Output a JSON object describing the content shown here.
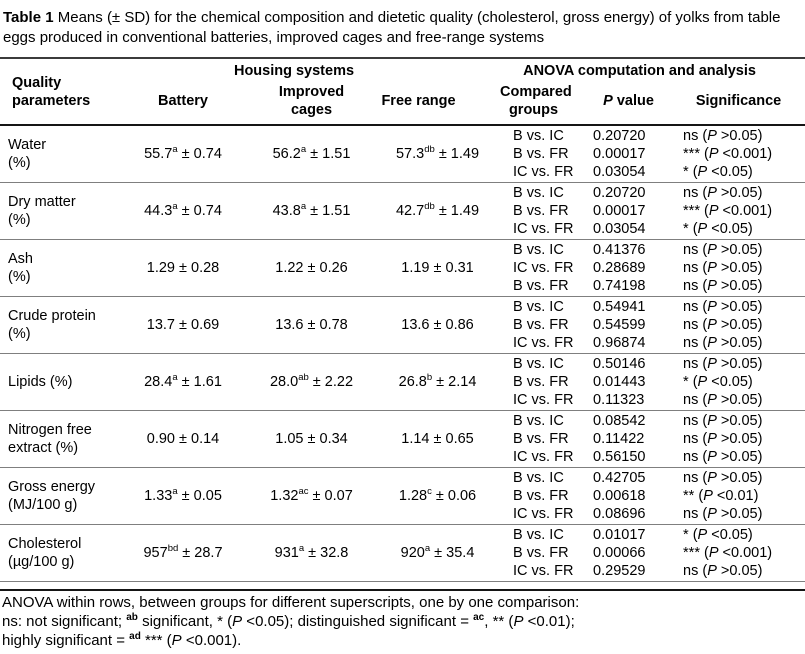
{
  "caption": {
    "label": "Table 1",
    "text": "Means (± SD) for the chemical composition and dietetic quality (cholesterol, gross energy) of yolks from table eggs produced in conventional batteries, improved cages and free-range systems"
  },
  "colors": {
    "text": "#000000",
    "rule_dark": "#2b2b2b",
    "rule_gray": "#7f7f7f",
    "background": "#ffffff"
  },
  "table": {
    "header": {
      "quality_parameters": "Quality\nparameters",
      "housing_systems": "Housing systems",
      "anova": "ANOVA computation and analysis",
      "battery": "Battery",
      "improved_cages": "Improved\ncages",
      "free_range": "Free range",
      "compared_groups": "Compared\ngroups",
      "p_italic": "P",
      "p_rest": " value",
      "significance": "Significance"
    },
    "rows": [
      {
        "param": "Water\n(%)",
        "values": [
          {
            "mean": "55.7",
            "sup": "a",
            "sd": "0.74"
          },
          {
            "mean": "56.2",
            "sup": "a",
            "sd": "1.51"
          },
          {
            "mean": "57.3",
            "sup": "db",
            "sd": "1.49"
          }
        ],
        "anova": [
          {
            "group": "B vs. IC",
            "p": "0.20720",
            "mark": "ns",
            "threshold": ">0.05"
          },
          {
            "group": "B vs. FR",
            "p": "0.00017",
            "mark": "***",
            "threshold": "<0.001"
          },
          {
            "group": "IC vs. FR",
            "p": "0.03054",
            "mark": "*",
            "threshold": "<0.05"
          }
        ]
      },
      {
        "param": "Dry matter\n(%)",
        "values": [
          {
            "mean": "44.3",
            "sup": "a",
            "sd": "0.74"
          },
          {
            "mean": "43.8",
            "sup": "a",
            "sd": "1.51"
          },
          {
            "mean": "42.7",
            "sup": "db",
            "sd": "1.49"
          }
        ],
        "anova": [
          {
            "group": "B vs. IC",
            "p": "0.20720",
            "mark": "ns",
            "threshold": ">0.05"
          },
          {
            "group": "B vs. FR",
            "p": "0.00017",
            "mark": "***",
            "threshold": "<0.001"
          },
          {
            "group": "IC vs. FR",
            "p": "0.03054",
            "mark": "*",
            "threshold": "<0.05"
          }
        ]
      },
      {
        "param": "Ash\n(%)",
        "values": [
          {
            "mean": "1.29",
            "sup": "",
            "sd": "0.28"
          },
          {
            "mean": "1.22",
            "sup": "",
            "sd": "0.26"
          },
          {
            "mean": "1.19",
            "sup": "",
            "sd": "0.31"
          }
        ],
        "anova": [
          {
            "group": "B vs. IC",
            "p": "0.41376",
            "mark": "ns",
            "threshold": ">0.05"
          },
          {
            "group": "IC vs. FR",
            "p": "0.28689",
            "mark": "ns",
            "threshold": ">0.05"
          },
          {
            "group": "B vs. FR",
            "p": "0.74198",
            "mark": "ns",
            "threshold": ">0.05"
          }
        ]
      },
      {
        "param": "Crude protein\n(%)",
        "values": [
          {
            "mean": "13.7",
            "sup": "",
            "sd": "0.69"
          },
          {
            "mean": "13.6",
            "sup": "",
            "sd": "0.78"
          },
          {
            "mean": "13.6",
            "sup": "",
            "sd": "0.86"
          }
        ],
        "anova": [
          {
            "group": "B vs. IC",
            "p": "0.54941",
            "mark": "ns",
            "threshold": ">0.05"
          },
          {
            "group": "B vs. FR",
            "p": "0.54599",
            "mark": "ns",
            "threshold": ">0.05"
          },
          {
            "group": "IC vs. FR",
            "p": "0.96874",
            "mark": "ns",
            "threshold": ">0.05"
          }
        ]
      },
      {
        "param": "Lipids (%)",
        "values": [
          {
            "mean": "28.4",
            "sup": "a",
            "sd": "1.61"
          },
          {
            "mean": "28.0",
            "sup": "ab",
            "sd": "2.22"
          },
          {
            "mean": "26.8",
            "sup": "b",
            "sd": "2.14"
          }
        ],
        "anova": [
          {
            "group": "B vs. IC",
            "p": "0.50146",
            "mark": "ns",
            "threshold": ">0.05"
          },
          {
            "group": "B vs. FR",
            "p": "0.01443",
            "mark": "*",
            "threshold": "<0.05"
          },
          {
            "group": "IC vs. FR",
            "p": "0.11323",
            "mark": "ns",
            "threshold": ">0.05"
          }
        ]
      },
      {
        "param": "Nitrogen free\nextract (%)",
        "values": [
          {
            "mean": "0.90",
            "sup": "",
            "sd": "0.14"
          },
          {
            "mean": "1.05",
            "sup": "",
            "sd": "0.34"
          },
          {
            "mean": "1.14",
            "sup": "",
            "sd": "0.65"
          }
        ],
        "anova": [
          {
            "group": "B vs. IC",
            "p": "0.08542",
            "mark": "ns",
            "threshold": ">0.05"
          },
          {
            "group": "B vs. FR",
            "p": "0.11422",
            "mark": "ns",
            "threshold": ">0.05"
          },
          {
            "group": "IC vs. FR",
            "p": "0.56150",
            "mark": "ns",
            "threshold": ">0.05"
          }
        ]
      },
      {
        "param": "Gross energy\n(MJ/100 g)",
        "values": [
          {
            "mean": "1.33",
            "sup": "a",
            "sd": "0.05"
          },
          {
            "mean": "1.32",
            "sup": "ac",
            "sd": "0.07"
          },
          {
            "mean": "1.28",
            "sup": "c",
            "sd": "0.06"
          }
        ],
        "anova": [
          {
            "group": "B vs. IC",
            "p": "0.42705",
            "mark": "ns",
            "threshold": ">0.05"
          },
          {
            "group": "B vs. FR",
            "p": "0.00618",
            "mark": "**",
            "threshold": "<0.01"
          },
          {
            "group": "IC vs. FR",
            "p": "0.08696",
            "mark": "ns",
            "threshold": ">0.05"
          }
        ]
      },
      {
        "param": "Cholesterol\n(µg/100 g)",
        "values": [
          {
            "mean": "957",
            "sup": "bd",
            "sd": "28.7"
          },
          {
            "mean": "931",
            "sup": "a",
            "sd": "32.8"
          },
          {
            "mean": "920",
            "sup": "a",
            "sd": "35.4"
          }
        ],
        "anova": [
          {
            "group": "B vs. IC",
            "p": "0.01017",
            "mark": "*",
            "threshold": "<0.05"
          },
          {
            "group": "B vs. FR",
            "p": "0.00066",
            "mark": "***",
            "threshold": "<0.001"
          },
          {
            "group": "IC vs. FR",
            "p": "0.29529",
            "mark": "ns",
            "threshold": ">0.05"
          }
        ]
      }
    ]
  },
  "footnote": {
    "lines": [
      [
        {
          "t": "ANOVA within rows, between groups for different superscripts, one by one comparison:"
        }
      ],
      [
        {
          "t": "ns: not significant; "
        },
        {
          "t": "ab",
          "sup": true
        },
        {
          "t": " significant, * ("
        },
        {
          "t": "P",
          "i": true
        },
        {
          "t": " <0.05); distinguished significant = "
        },
        {
          "t": "ac",
          "sup": true
        },
        {
          "t": ", ** ("
        },
        {
          "t": "P",
          "i": true
        },
        {
          "t": " <0.01);"
        }
      ],
      [
        {
          "t": "highly significant = "
        },
        {
          "t": "ad",
          "sup": true
        },
        {
          "t": " *** ("
        },
        {
          "t": "P",
          "i": true
        },
        {
          "t": " <0.001)."
        }
      ]
    ]
  }
}
